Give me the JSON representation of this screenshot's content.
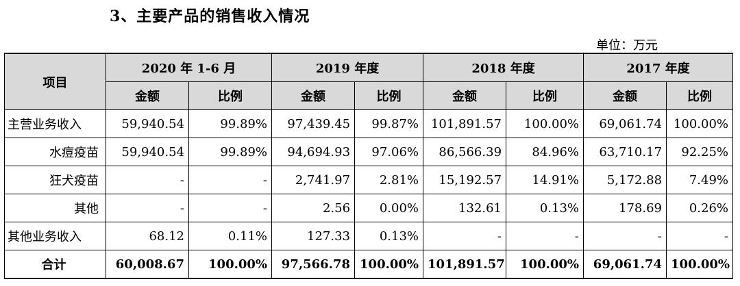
{
  "heading": "3、主要产品的销售收入情况",
  "unit": "单位：万元",
  "table": {
    "corner": "项目",
    "periods": [
      "2020 年 1-6 月",
      "2019 年度",
      "2018 年度",
      "2017 年度"
    ],
    "subheaders": [
      "金额",
      "比例"
    ],
    "rows": [
      {
        "label": "主营业务收入",
        "cells": [
          "59,940.54",
          "99.89%",
          "97,439.45",
          "99.87%",
          "101,891.57",
          "100.00%",
          "69,061.74",
          "100.00%"
        ]
      },
      {
        "label": "水痘疫苗",
        "cells": [
          "59,940.54",
          "99.89%",
          "94,694.93",
          "97.06%",
          "86,566.39",
          "84.96%",
          "63,710.17",
          "92.25%"
        ]
      },
      {
        "label": "狂犬疫苗",
        "cells": [
          "-",
          "-",
          "2,741.97",
          "2.81%",
          "15,192.57",
          "14.91%",
          "5,172.88",
          "7.49%"
        ]
      },
      {
        "label": "其他",
        "cells": [
          "-",
          "-",
          "2.56",
          "0.00%",
          "132.61",
          "0.13%",
          "178.69",
          "0.26%"
        ]
      },
      {
        "label": "其他业务收入",
        "cells": [
          "68.12",
          "0.11%",
          "127.33",
          "0.13%",
          "-",
          "-",
          "-",
          "-"
        ]
      },
      {
        "label": "合计",
        "cells": [
          "60,008.67",
          "100.00%",
          "97,566.78",
          "100.00%",
          "101,891.57",
          "100.00%",
          "69,061.74",
          "100.00%"
        ]
      }
    ]
  }
}
